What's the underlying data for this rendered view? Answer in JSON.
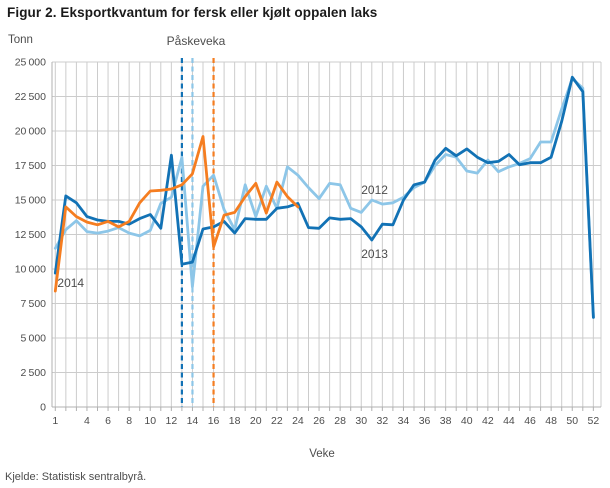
{
  "title": "Figur 2. Eksportkvantum for fersk eller kjølt oppalen laks",
  "y_axis_title": "Tonn",
  "x_axis_title": "Veke",
  "annotation": "Påskeveka",
  "source": "Kjelde: Statistisk sentralbyrå.",
  "colors": {
    "blue_dark": "#1272b5",
    "blue_light": "#8dc6e8",
    "orange": "#f57d20",
    "grid": "#cccccc",
    "axis": "#b0b0b0",
    "text": "#4d4d4d",
    "title_text": "#1a1a1a"
  },
  "chart_data": {
    "type": "line",
    "title": "Figur 2. Eksportkvantum for fersk eller kjølt oppalen laks",
    "xlabel": "Veke",
    "ylabel": "Tonn",
    "xlim": [
      1,
      52
    ],
    "ylim": [
      0,
      25000
    ],
    "ytick_step": 2500,
    "grid": true,
    "x_tick_labels": [
      1,
      4,
      6,
      8,
      10,
      12,
      14,
      16,
      18,
      20,
      22,
      24,
      26,
      28,
      30,
      32,
      34,
      36,
      38,
      40,
      42,
      44,
      46,
      48,
      50,
      52
    ],
    "x": [
      1,
      2,
      3,
      4,
      5,
      6,
      7,
      8,
      9,
      10,
      11,
      12,
      13,
      14,
      15,
      16,
      17,
      18,
      19,
      20,
      21,
      22,
      23,
      24,
      25,
      26,
      27,
      28,
      29,
      30,
      31,
      32,
      33,
      34,
      35,
      36,
      37,
      38,
      39,
      40,
      41,
      42,
      43,
      44,
      45,
      46,
      47,
      48,
      49,
      50,
      51,
      52
    ],
    "series": [
      {
        "name": "2012",
        "color": "#8dc6e8",
        "values": [
          11500,
          12850,
          13500,
          12700,
          12600,
          12750,
          13000,
          12600,
          12400,
          12800,
          14750,
          15200,
          18100,
          8700,
          16000,
          16800,
          14300,
          12850,
          16100,
          13800,
          16000,
          14400,
          17400,
          16800,
          15900,
          15100,
          16200,
          16100,
          14400,
          14100,
          15000,
          14700,
          14800,
          15200,
          15900,
          16300,
          17500,
          18300,
          18100,
          17100,
          16950,
          17900,
          17050,
          17400,
          17650,
          18000,
          19200,
          19200,
          21600,
          23800,
          23100,
          6500
        ]
      },
      {
        "name": "2013",
        "color": "#1272b5",
        "values": [
          9700,
          15300,
          14800,
          13800,
          13550,
          13450,
          13450,
          13250,
          13650,
          13950,
          12950,
          18250,
          10350,
          10500,
          12900,
          13050,
          13450,
          12600,
          13650,
          13600,
          13600,
          14400,
          14500,
          14750,
          13000,
          12950,
          13700,
          13600,
          13650,
          13050,
          12100,
          13250,
          13200,
          15000,
          16100,
          16300,
          17900,
          18750,
          18200,
          18700,
          18100,
          17700,
          17800,
          18300,
          17550,
          17700,
          17700,
          18100,
          20700,
          23900,
          22850,
          6500
        ]
      },
      {
        "name": "2014",
        "color": "#f57d20",
        "values": [
          8400,
          14500,
          13800,
          13400,
          13200,
          13450,
          13050,
          13450,
          14800,
          15650,
          15700,
          15800,
          16100,
          16900,
          19600,
          11600,
          13900,
          14100,
          15250,
          16200,
          14050,
          16300,
          15250,
          14500
        ]
      }
    ],
    "easter_week_markers": [
      {
        "year": "2013",
        "week": 13,
        "color": "#1272b5"
      },
      {
        "year": "2012",
        "week": 14,
        "color": "#8dc6e8"
      },
      {
        "year": "2014",
        "week": 16,
        "color": "#f57d20"
      }
    ],
    "inline_series_labels": [
      {
        "text": "2014",
        "week": 1.2,
        "value": 9000
      },
      {
        "text": "2012",
        "week": 30.0,
        "value": 15700
      },
      {
        "text": "2013",
        "week": 30.0,
        "value": 11100
      }
    ]
  }
}
